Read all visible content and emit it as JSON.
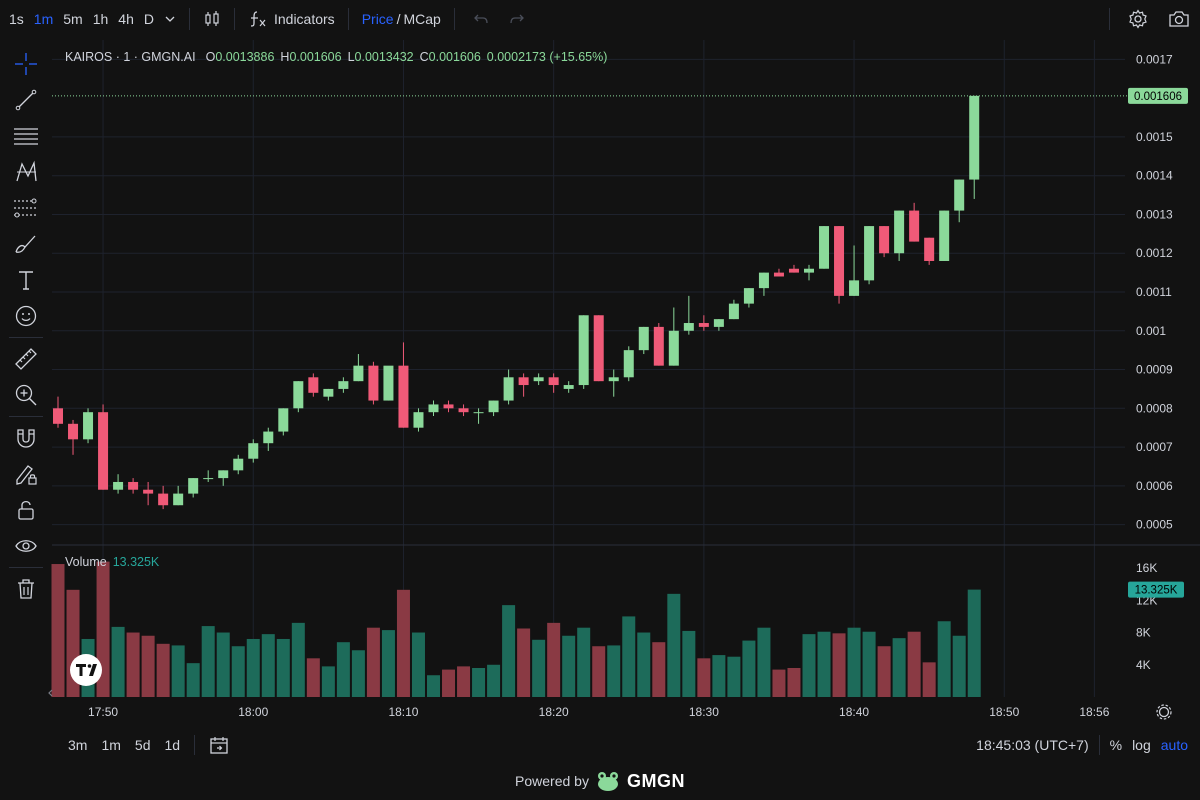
{
  "topbar": {
    "intervals": [
      "1s",
      "1m",
      "5m",
      "1h",
      "4h",
      "D"
    ],
    "active_interval": "1m",
    "indicators_label": "Indicators",
    "price_label": "Price",
    "slash": "/",
    "mcap_label": "MCap"
  },
  "legend": {
    "symbol": "KAIROS · 1 · GMGN.AI",
    "o_key": "O",
    "o_val": "0.0013886",
    "h_key": "H",
    "h_val": "0.001606",
    "l_key": "L",
    "l_val": "0.0013432",
    "c_key": "C",
    "c_val": "0.001606",
    "change": "0.0002173 (+15.65%)"
  },
  "volume_legend": {
    "label": "Volume",
    "value": "13.325K"
  },
  "price_axis": {
    "ticks": [
      "0.0017",
      "0.0015",
      "0.0014",
      "0.0013",
      "0.0012",
      "0.0011",
      "0.001",
      "0.0009",
      "0.0008",
      "0.0007",
      "0.0006",
      "0.0005"
    ],
    "last_price": "0.001606"
  },
  "volume_axis": {
    "ticks": [
      "16K",
      "12K",
      "8K",
      "4K"
    ],
    "last_volume": "13.325K"
  },
  "time_axis": [
    "17:50",
    "18:00",
    "18:10",
    "18:20",
    "18:30",
    "18:40",
    "18:50",
    "18:56"
  ],
  "bottombar": {
    "ranges": [
      "3m",
      "1m",
      "5d",
      "1d"
    ],
    "clock": "18:45:03 (UTC+7)",
    "percent": "%",
    "log": "log",
    "auto": "auto"
  },
  "footer": {
    "powered_by": "Powered by",
    "brand": "GMGN"
  },
  "colors": {
    "up": "#8bd99a",
    "down": "#f05a78",
    "vol_up": "#1d6b5a",
    "vol_down": "#8a3a44",
    "background": "#121212",
    "accent": "#2962ff"
  },
  "chart_data": {
    "type": "candlestick",
    "interval": "1m",
    "y_range": [
      0.00045,
      0.00175
    ],
    "volume_range": [
      0,
      17000
    ],
    "x_start_time": "17:47",
    "candles": [
      {
        "o": 0.0008,
        "h": 0.00083,
        "l": 0.00075,
        "c": 0.00076,
        "v": 16500
      },
      {
        "o": 0.00076,
        "h": 0.00077,
        "l": 0.00068,
        "c": 0.00072,
        "v": 13300
      },
      {
        "o": 0.00072,
        "h": 0.0008,
        "l": 0.00071,
        "c": 0.00079,
        "v": 7200
      },
      {
        "o": 0.00079,
        "h": 0.00081,
        "l": 0.00059,
        "c": 0.00059,
        "v": 16800
      },
      {
        "o": 0.00059,
        "h": 0.00063,
        "l": 0.00058,
        "c": 0.00061,
        "v": 8700
      },
      {
        "o": 0.00061,
        "h": 0.00062,
        "l": 0.00058,
        "c": 0.00059,
        "v": 8000
      },
      {
        "o": 0.00059,
        "h": 0.00061,
        "l": 0.00055,
        "c": 0.00058,
        "v": 7600
      },
      {
        "o": 0.00058,
        "h": 0.0006,
        "l": 0.00054,
        "c": 0.00055,
        "v": 6600
      },
      {
        "o": 0.00055,
        "h": 0.0006,
        "l": 0.00055,
        "c": 0.00058,
        "v": 6400
      },
      {
        "o": 0.00058,
        "h": 0.00062,
        "l": 0.00057,
        "c": 0.00062,
        "v": 4200
      },
      {
        "o": 0.00062,
        "h": 0.00064,
        "l": 0.00061,
        "c": 0.00062,
        "v": 8800
      },
      {
        "o": 0.00062,
        "h": 0.00064,
        "l": 0.0006,
        "c": 0.00064,
        "v": 8000
      },
      {
        "o": 0.00064,
        "h": 0.00068,
        "l": 0.00063,
        "c": 0.00067,
        "v": 6300
      },
      {
        "o": 0.00067,
        "h": 0.00072,
        "l": 0.00066,
        "c": 0.00071,
        "v": 7200
      },
      {
        "o": 0.00071,
        "h": 0.00075,
        "l": 0.00069,
        "c": 0.00074,
        "v": 7800
      },
      {
        "o": 0.00074,
        "h": 0.0008,
        "l": 0.00073,
        "c": 0.0008,
        "v": 7200
      },
      {
        "o": 0.0008,
        "h": 0.00087,
        "l": 0.00079,
        "c": 0.00087,
        "v": 9200
      },
      {
        "o": 0.00088,
        "h": 0.00089,
        "l": 0.00083,
        "c": 0.00084,
        "v": 4800
      },
      {
        "o": 0.00083,
        "h": 0.00085,
        "l": 0.00082,
        "c": 0.00085,
        "v": 3800
      },
      {
        "o": 0.00085,
        "h": 0.00088,
        "l": 0.00084,
        "c": 0.00087,
        "v": 6800
      },
      {
        "o": 0.00087,
        "h": 0.00094,
        "l": 0.00087,
        "c": 0.00091,
        "v": 5800
      },
      {
        "o": 0.00091,
        "h": 0.00092,
        "l": 0.00081,
        "c": 0.00082,
        "v": 8600
      },
      {
        "o": 0.00082,
        "h": 0.0009,
        "l": 0.00082,
        "c": 0.00091,
        "v": 8300
      },
      {
        "o": 0.00091,
        "h": 0.00097,
        "l": 0.00075,
        "c": 0.00075,
        "v": 13300
      },
      {
        "o": 0.00075,
        "h": 0.0008,
        "l": 0.00074,
        "c": 0.00079,
        "v": 8000
      },
      {
        "o": 0.00079,
        "h": 0.00082,
        "l": 0.00078,
        "c": 0.00081,
        "v": 2700
      },
      {
        "o": 0.00081,
        "h": 0.00082,
        "l": 0.00079,
        "c": 0.0008,
        "v": 3400
      },
      {
        "o": 0.0008,
        "h": 0.00081,
        "l": 0.00078,
        "c": 0.00079,
        "v": 3800
      },
      {
        "o": 0.00079,
        "h": 0.0008,
        "l": 0.00076,
        "c": 0.00079,
        "v": 3600
      },
      {
        "o": 0.00079,
        "h": 0.00082,
        "l": 0.00078,
        "c": 0.00082,
        "v": 4000
      },
      {
        "o": 0.00082,
        "h": 0.0009,
        "l": 0.00081,
        "c": 0.00088,
        "v": 11400
      },
      {
        "o": 0.00088,
        "h": 0.00089,
        "l": 0.00083,
        "c": 0.00086,
        "v": 8500
      },
      {
        "o": 0.00087,
        "h": 0.00089,
        "l": 0.00086,
        "c": 0.00088,
        "v": 7100
      },
      {
        "o": 0.00088,
        "h": 0.00089,
        "l": 0.00084,
        "c": 0.00086,
        "v": 9200
      },
      {
        "o": 0.00085,
        "h": 0.00087,
        "l": 0.00084,
        "c": 0.00086,
        "v": 7600
      },
      {
        "o": 0.00086,
        "h": 0.00104,
        "l": 0.00085,
        "c": 0.00104,
        "v": 8600
      },
      {
        "o": 0.00104,
        "h": 0.00104,
        "l": 0.00087,
        "c": 0.00087,
        "v": 6300
      },
      {
        "o": 0.00087,
        "h": 0.0009,
        "l": 0.00083,
        "c": 0.00088,
        "v": 6400
      },
      {
        "o": 0.00088,
        "h": 0.00096,
        "l": 0.00087,
        "c": 0.00095,
        "v": 10000
      },
      {
        "o": 0.00095,
        "h": 0.00101,
        "l": 0.00094,
        "c": 0.00101,
        "v": 8000
      },
      {
        "o": 0.00101,
        "h": 0.00102,
        "l": 0.00091,
        "c": 0.00091,
        "v": 6800
      },
      {
        "o": 0.00091,
        "h": 0.00106,
        "l": 0.00091,
        "c": 0.001,
        "v": 12800
      },
      {
        "o": 0.001,
        "h": 0.00109,
        "l": 0.00099,
        "c": 0.00102,
        "v": 8200
      },
      {
        "o": 0.00102,
        "h": 0.00104,
        "l": 0.001,
        "c": 0.00101,
        "v": 4800
      },
      {
        "o": 0.00101,
        "h": 0.00103,
        "l": 0.001,
        "c": 0.00103,
        "v": 5200
      },
      {
        "o": 0.00103,
        "h": 0.00108,
        "l": 0.00103,
        "c": 0.00107,
        "v": 5000
      },
      {
        "o": 0.00107,
        "h": 0.00111,
        "l": 0.00106,
        "c": 0.00111,
        "v": 7000
      },
      {
        "o": 0.00111,
        "h": 0.00115,
        "l": 0.00109,
        "c": 0.00115,
        "v": 8600
      },
      {
        "o": 0.00115,
        "h": 0.00116,
        "l": 0.00114,
        "c": 0.00114,
        "v": 3400
      },
      {
        "o": 0.00116,
        "h": 0.00117,
        "l": 0.00115,
        "c": 0.00115,
        "v": 3600
      },
      {
        "o": 0.00115,
        "h": 0.00117,
        "l": 0.00113,
        "c": 0.00116,
        "v": 7800
      },
      {
        "o": 0.00116,
        "h": 0.00127,
        "l": 0.00116,
        "c": 0.00127,
        "v": 8100
      },
      {
        "o": 0.00127,
        "h": 0.00127,
        "l": 0.00107,
        "c": 0.00109,
        "v": 7900
      },
      {
        "o": 0.00109,
        "h": 0.00122,
        "l": 0.00109,
        "c": 0.00113,
        "v": 8600
      },
      {
        "o": 0.00113,
        "h": 0.00127,
        "l": 0.00112,
        "c": 0.00127,
        "v": 8100
      },
      {
        "o": 0.00127,
        "h": 0.00127,
        "l": 0.00119,
        "c": 0.0012,
        "v": 6300
      },
      {
        "o": 0.0012,
        "h": 0.00131,
        "l": 0.00118,
        "c": 0.00131,
        "v": 7300
      },
      {
        "o": 0.00131,
        "h": 0.00133,
        "l": 0.00123,
        "c": 0.00123,
        "v": 8100
      },
      {
        "o": 0.00124,
        "h": 0.00124,
        "l": 0.00117,
        "c": 0.00118,
        "v": 4300
      },
      {
        "o": 0.00118,
        "h": 0.00131,
        "l": 0.00118,
        "c": 0.00131,
        "v": 9400
      },
      {
        "o": 0.00131,
        "h": 0.00139,
        "l": 0.00128,
        "c": 0.00139,
        "v": 7600
      },
      {
        "o": 0.00139,
        "h": 0.001606,
        "l": 0.00134,
        "c": 0.001606,
        "v": 13325
      }
    ]
  }
}
